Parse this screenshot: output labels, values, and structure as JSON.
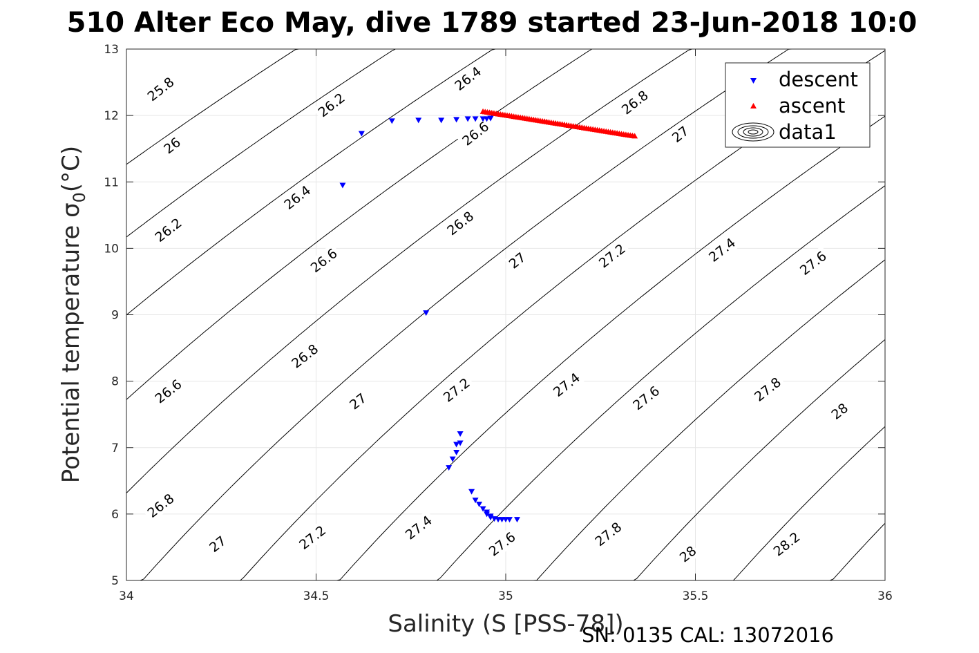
{
  "chart_data": {
    "type": "scatter",
    "title": "510 Alter Eco May, dive 1789 started 23-Jun-2018 10:0",
    "xlabel": "Salinity (S [PSS-78])",
    "ylabel": "Potential temperature σ",
    "ylabel_sub": "0",
    "ylabel_unit": "(°C)",
    "footer": "SN: 0135  CAL: 13072016",
    "xlim": [
      34,
      36
    ],
    "ylim": [
      5,
      13
    ],
    "x_ticks": [
      34,
      34.5,
      35,
      35.5,
      36
    ],
    "x_tick_labels": [
      "34",
      "34.5",
      "35",
      "35.5",
      "36"
    ],
    "y_ticks": [
      5,
      6,
      7,
      8,
      9,
      10,
      11,
      12,
      13
    ],
    "y_tick_labels": [
      "5",
      "6",
      "7",
      "8",
      "9",
      "10",
      "11",
      "12",
      "13"
    ],
    "grid": true,
    "legend_position": "top-right",
    "legend": [
      {
        "label": "descent",
        "marker": "triangle-down",
        "color": "#0000ff"
      },
      {
        "label": "ascent",
        "marker": "triangle-up",
        "color": "#ff0000"
      },
      {
        "label": "data1",
        "marker": "contour",
        "color": "#000000"
      }
    ],
    "series": [
      {
        "name": "descent",
        "marker": "triangle-down",
        "color": "#0000ff",
        "points": [
          [
            34.57,
            10.95
          ],
          [
            34.62,
            11.73
          ],
          [
            34.7,
            11.92
          ],
          [
            34.77,
            11.93
          ],
          [
            34.83,
            11.93
          ],
          [
            34.87,
            11.94
          ],
          [
            34.9,
            11.95
          ],
          [
            34.92,
            11.95
          ],
          [
            34.94,
            11.95
          ],
          [
            34.95,
            11.95
          ],
          [
            34.96,
            11.96
          ],
          [
            34.96,
            11.96
          ],
          [
            34.79,
            9.03
          ],
          [
            34.88,
            7.21
          ],
          [
            34.88,
            7.07
          ],
          [
            34.87,
            7.05
          ],
          [
            34.87,
            6.93
          ],
          [
            34.86,
            6.83
          ],
          [
            34.85,
            6.7
          ],
          [
            34.91,
            6.34
          ],
          [
            34.92,
            6.21
          ],
          [
            34.93,
            6.15
          ],
          [
            34.94,
            6.08
          ],
          [
            34.95,
            6.03
          ],
          [
            34.95,
            6.0
          ],
          [
            34.96,
            5.97
          ],
          [
            34.96,
            5.95
          ],
          [
            34.97,
            5.93
          ],
          [
            34.98,
            5.92
          ],
          [
            34.99,
            5.92
          ],
          [
            35.0,
            5.92
          ],
          [
            35.01,
            5.92
          ],
          [
            35.03,
            5.92
          ]
        ]
      },
      {
        "name": "ascent",
        "marker": "triangle-up",
        "color": "#ff0000",
        "line": {
          "x_start": 34.94,
          "y_start": 12.06,
          "x_end": 35.34,
          "y_end": 11.69,
          "count": 70
        }
      }
    ],
    "contours": {
      "levels": [
        25.8,
        26.0,
        26.2,
        26.4,
        26.6,
        26.8,
        27.0,
        27.2,
        27.4,
        27.6,
        27.8,
        28.0,
        28.2
      ],
      "labels": [
        {
          "text": "25.8",
          "s": 34.09,
          "t": 12.4,
          "angle": -38
        },
        {
          "text": "26",
          "s": 34.12,
          "t": 11.55,
          "angle": -38
        },
        {
          "text": "26.2",
          "s": 34.11,
          "t": 10.28,
          "angle": -38
        },
        {
          "text": "26.2",
          "s": 34.54,
          "t": 12.16,
          "angle": -38
        },
        {
          "text": "26.4",
          "s": 34.45,
          "t": 10.77,
          "angle": -38
        },
        {
          "text": "26.4",
          "s": 34.9,
          "t": 12.56,
          "angle": -38
        },
        {
          "text": "26.6",
          "s": 34.11,
          "t": 7.85,
          "angle": -38
        },
        {
          "text": "26.6",
          "s": 34.52,
          "t": 9.82,
          "angle": -38
        },
        {
          "text": "26.6",
          "s": 34.92,
          "t": 11.73,
          "angle": -38
        },
        {
          "text": "26.8",
          "s": 34.09,
          "t": 6.13,
          "angle": -38
        },
        {
          "text": "26.8",
          "s": 34.47,
          "t": 8.38,
          "angle": -38
        },
        {
          "text": "26.8",
          "s": 34.88,
          "t": 10.38,
          "angle": -38
        },
        {
          "text": "26.8",
          "s": 35.34,
          "t": 12.2,
          "angle": -38
        },
        {
          "text": "27",
          "s": 34.24,
          "t": 5.55,
          "angle": -38
        },
        {
          "text": "27",
          "s": 34.61,
          "t": 7.7,
          "angle": -38
        },
        {
          "text": "27",
          "s": 35.03,
          "t": 9.82,
          "angle": -38
        },
        {
          "text": "27",
          "s": 35.46,
          "t": 11.72,
          "angle": -38
        },
        {
          "text": "27.2",
          "s": 34.49,
          "t": 5.65,
          "angle": -38
        },
        {
          "text": "27.2",
          "s": 34.87,
          "t": 7.87,
          "angle": -38
        },
        {
          "text": "27.2",
          "s": 35.28,
          "t": 9.89,
          "angle": -38
        },
        {
          "text": "27.4",
          "s": 34.77,
          "t": 5.8,
          "angle": -38
        },
        {
          "text": "27.4",
          "s": 35.16,
          "t": 7.95,
          "angle": -38
        },
        {
          "text": "27.4",
          "s": 35.57,
          "t": 9.98,
          "angle": -38
        },
        {
          "text": "27.6",
          "s": 34.99,
          "t": 5.55,
          "angle": -38
        },
        {
          "text": "27.6",
          "s": 35.37,
          "t": 7.75,
          "angle": -38
        },
        {
          "text": "27.6",
          "s": 35.81,
          "t": 9.78,
          "angle": -38
        },
        {
          "text": "27.8",
          "s": 35.27,
          "t": 5.7,
          "angle": -38
        },
        {
          "text": "27.8",
          "s": 35.69,
          "t": 7.88,
          "angle": -38
        },
        {
          "text": "28",
          "s": 35.48,
          "t": 5.4,
          "angle": -38
        },
        {
          "text": "28",
          "s": 35.88,
          "t": 7.55,
          "angle": -38
        },
        {
          "text": "28.2",
          "s": 35.74,
          "t": 5.55,
          "angle": -38
        }
      ]
    }
  }
}
